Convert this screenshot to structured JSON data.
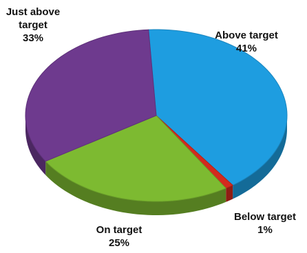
{
  "chart_data": {
    "type": "pie",
    "style": "3d-tilted",
    "slices": [
      {
        "label": "Above target",
        "value": 41,
        "percent_label": "41%",
        "color": "#1E9DE0"
      },
      {
        "label": "Below target",
        "value": 1,
        "percent_label": "1%",
        "color": "#D42A1E"
      },
      {
        "label": "On target",
        "value": 25,
        "percent_label": "25%",
        "color": "#7DBA31"
      },
      {
        "label": "Just above target",
        "value": 33,
        "percent_label": "33%",
        "color": "#6E3A8E"
      }
    ]
  },
  "labels": {
    "just_line1": "Just above",
    "just_line2": "target",
    "just_pct": "33%",
    "above_name": "Above target",
    "above_pct": "41%",
    "on_name": "On target",
    "on_pct": "25%",
    "below_name": "Below target",
    "below_pct": "1%"
  }
}
